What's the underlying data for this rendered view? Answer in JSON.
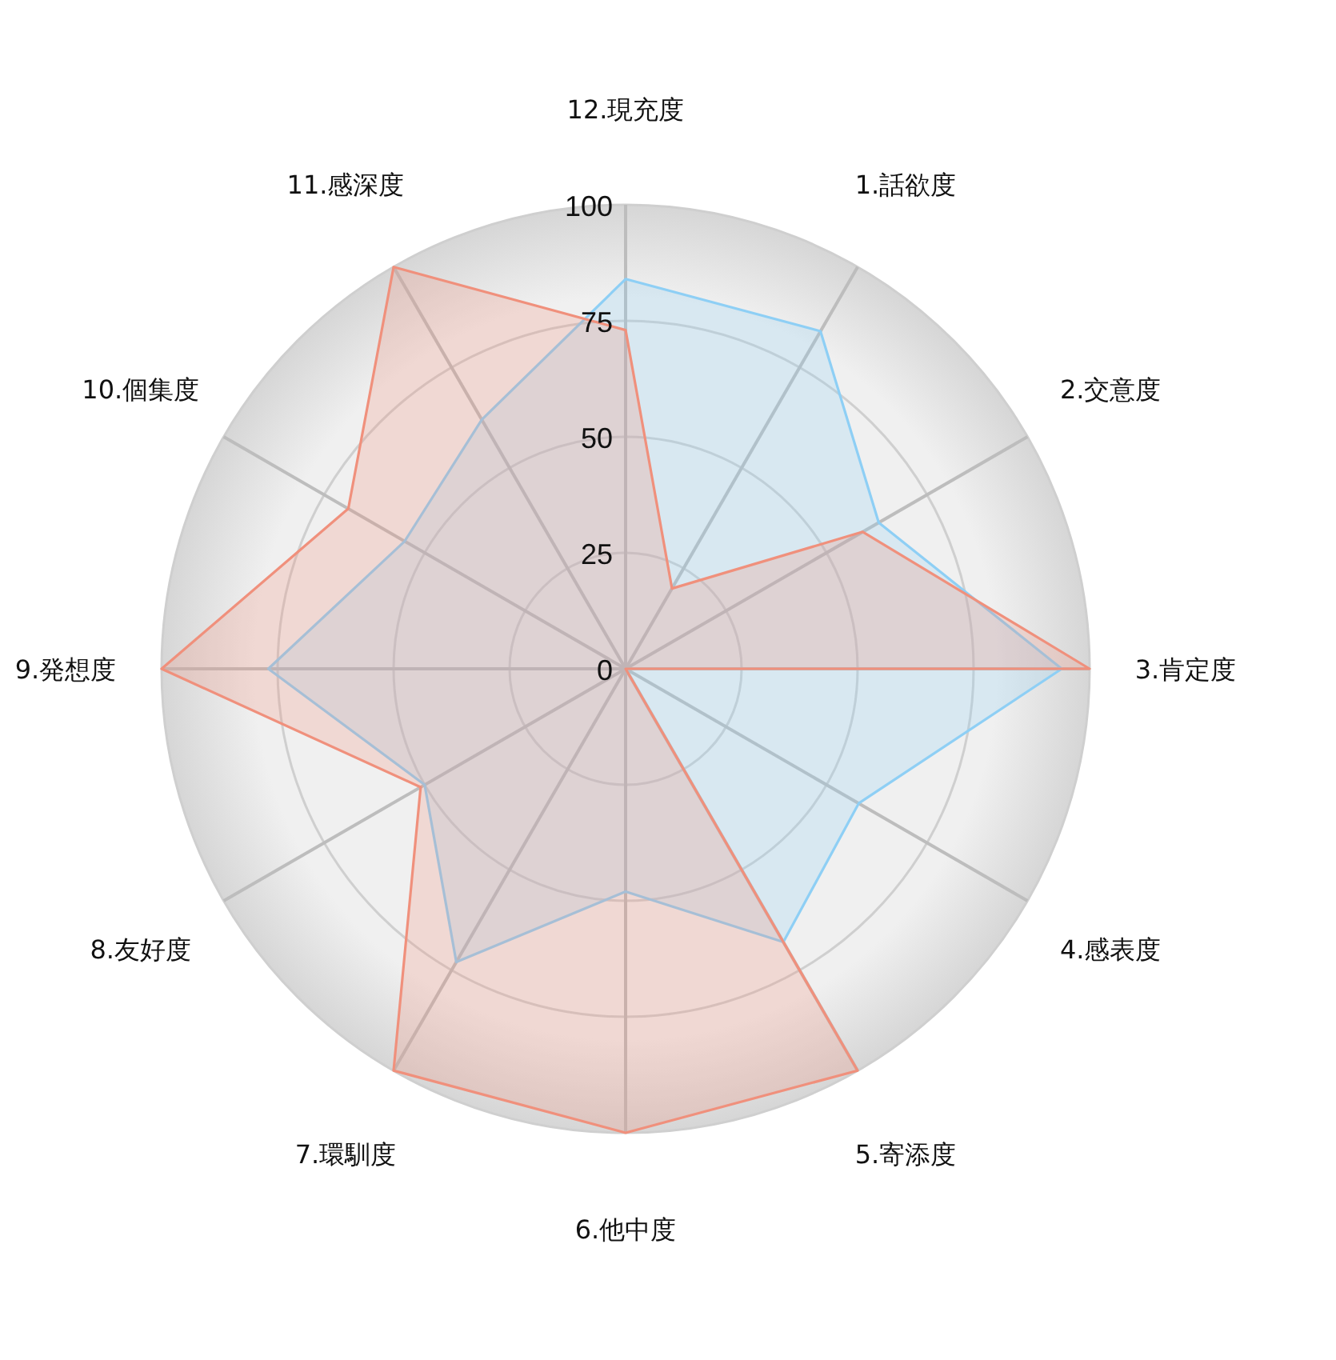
{
  "chart_data": {
    "type": "radar",
    "categories": [
      "12.現充度",
      "1.話欲度",
      "2.交意度",
      "3.肯定度",
      "4.感表度",
      "5.寄添度",
      "6.他中度",
      "7.環馴度",
      "8.友好度",
      "9.発想度",
      "10.個集度",
      "11.感深度"
    ],
    "series": [
      {
        "color": "#8ecff5",
        "values": [
          84,
          84,
          63,
          94,
          58,
          68,
          48,
          73,
          50,
          77,
          55,
          62
        ]
      },
      {
        "color": "#f0907c",
        "values": [
          73,
          20,
          59,
          100,
          0,
          100,
          100,
          100,
          51,
          100,
          69,
          100
        ]
      }
    ],
    "ylim": [
      0,
      100
    ],
    "yticks": [
      0,
      25,
      50,
      75,
      100
    ],
    "grid": true
  }
}
